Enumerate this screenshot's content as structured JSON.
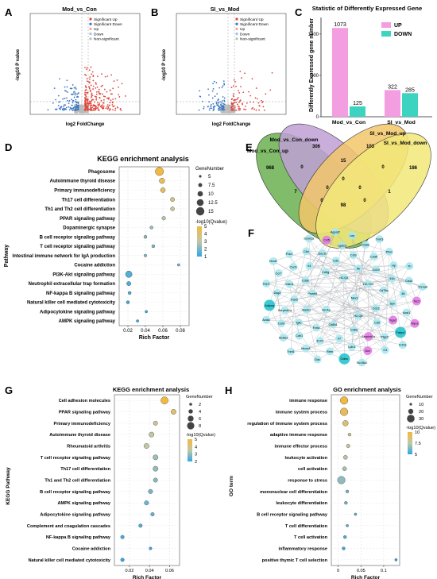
{
  "panels": {
    "A": {
      "letter": "A",
      "title": "Mod_vs_Con",
      "xlabel": "log2 FoldChange",
      "ylabel": "-log10 P value",
      "legend": [
        "Significant Up",
        "Significant Down",
        "Up",
        "Down",
        "Non-significant"
      ]
    },
    "B": {
      "letter": "B",
      "title": "SI_vs_Mod",
      "xlabel": "log2 FoldChange",
      "ylabel": "-log10 P value",
      "legend": [
        "Significant Up",
        "Significant Down",
        "Up",
        "Down",
        "Non-significant"
      ]
    },
    "C": {
      "letter": "C",
      "title": "Statistic of Differently Expressed Gene",
      "ylabel": "Differently Expressed gene number",
      "legend": [
        "UP",
        "DOWN"
      ]
    },
    "D": {
      "letter": "D",
      "title": "KEGG enrichment analysis",
      "xlabel": "Rich Factor",
      "ylabel": "Pathway",
      "size_title": "GeneNumber",
      "color_title": "-log10(Qvalue)"
    },
    "E": {
      "letter": "E",
      "sets": [
        "Mod_vs_Con_down",
        "Mod_vs_Con_up",
        "SI_vs_Mod_up",
        "SI_vs_Mod_down"
      ],
      "counts": [
        "968",
        "306",
        "103",
        "186",
        "0",
        "15",
        "0",
        "0",
        "7",
        "0",
        "0",
        "1",
        "98",
        "0",
        "0"
      ]
    },
    "F": {
      "letter": "F"
    },
    "G": {
      "letter": "G",
      "title": "KEGG enrichment analysis",
      "xlabel": "Rich Factor",
      "ylabel": "KEGG Pathway",
      "size_title": "GeneNumber",
      "color_title": "-log10(Qvalue)"
    },
    "H": {
      "letter": "H",
      "title": "GO enrichment analysis",
      "xlabel": "Rich Factor",
      "ylabel": "GO term",
      "size_title": "GeneNumber",
      "color_title": "-log10(Qvalue)"
    }
  },
  "chart_data": [
    {
      "id": "C",
      "type": "bar",
      "title": "Statistic of Differently Expressed Gene",
      "categories": [
        "Mod_vs_Con",
        "SI_vs_Mod"
      ],
      "series": [
        {
          "name": "UP",
          "values": [
            1073,
            322
          ],
          "color": "#f29ee0"
        },
        {
          "name": "DOWN",
          "values": [
            125,
            285
          ],
          "color": "#3cd3c0"
        }
      ],
      "ylabel": "Differently Expressed gene number",
      "ylim": [
        0,
        1200
      ],
      "yticks": [
        0,
        500,
        1000
      ],
      "legend_position": "top-right"
    },
    {
      "id": "D",
      "type": "scatter",
      "title": "KEGG enrichment analysis",
      "xlabel": "Rich Factor",
      "ylabel": "Pathway",
      "xlim": [
        0.01,
        0.09
      ],
      "xticks": [
        0.02,
        0.04,
        0.06,
        0.08
      ],
      "size_legend": [
        5,
        7.5,
        10,
        12.5,
        15
      ],
      "color_legend": [
        1,
        2,
        3,
        4,
        5
      ],
      "points": [
        {
          "label": "Phagosome",
          "x": 0.056,
          "size": 15,
          "q": 5
        },
        {
          "label": "Autoimmune thyroid disease",
          "x": 0.059,
          "size": 10,
          "q": 4.5
        },
        {
          "label": "Primary immunodeficiency",
          "x": 0.06,
          "size": 9,
          "q": 4.3
        },
        {
          "label": "Th17 cell differentiation",
          "x": 0.071,
          "size": 8,
          "q": 3.6
        },
        {
          "label": "Th1 and Th2 cell differentiation",
          "x": 0.071,
          "size": 7.5,
          "q": 3.4
        },
        {
          "label": "PPAR signaling pathway",
          "x": 0.061,
          "size": 7,
          "q": 2.9
        },
        {
          "label": "Dopaminergic synapse",
          "x": 0.047,
          "size": 6,
          "q": 2.4
        },
        {
          "label": "B cell receptor signaling pathway",
          "x": 0.04,
          "size": 6,
          "q": 2.2
        },
        {
          "label": "T cell receptor signaling pathway",
          "x": 0.049,
          "size": 6,
          "q": 2.1
        },
        {
          "label": "Intestinal immune network for IgA production",
          "x": 0.04,
          "size": 5.5,
          "q": 2
        },
        {
          "label": "Cocaine addiction",
          "x": 0.078,
          "size": 5,
          "q": 1.9
        },
        {
          "label": "PI3K-Akt signaling pathway",
          "x": 0.021,
          "size": 12,
          "q": 1.5
        },
        {
          "label": "Neutrophil extracellular trap formation",
          "x": 0.021,
          "size": 8,
          "q": 1.4
        },
        {
          "label": "NF-kappa B signaling pathway",
          "x": 0.022,
          "size": 6,
          "q": 1.3
        },
        {
          "label": "Natural killer cell mediated cytotoxicity",
          "x": 0.02,
          "size": 6,
          "q": 1.2
        },
        {
          "label": "Adipocytokine signaling pathway",
          "x": 0.041,
          "size": 5,
          "q": 1.1
        },
        {
          "label": "AMPK signaling pathway",
          "x": 0.031,
          "size": 5,
          "q": 1
        }
      ]
    },
    {
      "id": "G",
      "type": "scatter",
      "title": "KEGG enrichment analysis",
      "xlabel": "Rich Factor",
      "ylabel": "KEGG Pathway",
      "xlim": [
        0.005,
        0.07
      ],
      "xticks": [
        0.02,
        0.04,
        0.06
      ],
      "size_legend": [
        2,
        4,
        6,
        8
      ],
      "color_legend": [
        2,
        3,
        4,
        5
      ],
      "points": [
        {
          "label": "Cell adhesion molecules",
          "x": 0.055,
          "size": 8,
          "q": 5.2
        },
        {
          "label": "PPAR signaling pathway",
          "x": 0.064,
          "size": 5,
          "q": 4.4
        },
        {
          "label": "Primary immunodeficiency",
          "x": 0.046,
          "size": 4,
          "q": 3.8
        },
        {
          "label": "Autoimmune thyroid disease",
          "x": 0.042,
          "size": 5,
          "q": 3.6
        },
        {
          "label": "Rheumatoid arthritis",
          "x": 0.037,
          "size": 5,
          "q": 3.5
        },
        {
          "label": "T cell receptor signaling pathway",
          "x": 0.046,
          "size": 5,
          "q": 3.1
        },
        {
          "label": "Th17 cell differentiation",
          "x": 0.046,
          "size": 5,
          "q": 3
        },
        {
          "label": "Th1 and Th2 cell differentiation",
          "x": 0.046,
          "size": 4,
          "q": 2.9
        },
        {
          "label": "B cell receptor signaling pathway",
          "x": 0.041,
          "size": 4,
          "q": 2.7
        },
        {
          "label": "AMPK signaling pathway",
          "x": 0.037,
          "size": 4,
          "q": 2.6
        },
        {
          "label": "Adipocytokine signaling pathway",
          "x": 0.043,
          "size": 3,
          "q": 2.5
        },
        {
          "label": "Complement and coagulation cascades",
          "x": 0.031,
          "size": 3,
          "q": 2.3
        },
        {
          "label": "NF-kappa B signaling pathway",
          "x": 0.013,
          "size": 3,
          "q": 2.2
        },
        {
          "label": "Cocaine addiction",
          "x": 0.041,
          "size": 2,
          "q": 2.1
        },
        {
          "label": "Natural killer cell mediated cytotoxicity",
          "x": 0.013,
          "size": 3,
          "q": 2
        }
      ]
    },
    {
      "id": "H",
      "type": "scatter",
      "title": "GO enrichment analysis",
      "xlabel": "Rich Factor",
      "ylabel": "GO term",
      "xlim": [
        -0.015,
        0.135
      ],
      "xticks": [
        0,
        0.05,
        0.1
      ],
      "size_legend": [
        10,
        20,
        30
      ],
      "color_legend": [
        5,
        7.5,
        10
      ],
      "points": [
        {
          "label": "immune response",
          "x": 0.013,
          "size": 30,
          "q": 10
        },
        {
          "label": "immune system process",
          "x": 0.013,
          "size": 32,
          "q": 9.5
        },
        {
          "label": "regulation of immune system process",
          "x": 0.016,
          "size": 22,
          "q": 8.8
        },
        {
          "label": "adaptive immune response",
          "x": 0.025,
          "size": 12,
          "q": 8.2
        },
        {
          "label": "immune effector process",
          "x": 0.022,
          "size": 14,
          "q": 7.8
        },
        {
          "label": "leukocyte activation",
          "x": 0.016,
          "size": 16,
          "q": 7.3
        },
        {
          "label": "cell activation",
          "x": 0.014,
          "size": 16,
          "q": 7
        },
        {
          "label": "response to stress",
          "x": 0.007,
          "size": 30,
          "q": 6.6
        },
        {
          "label": "mononuclear cell differentiation",
          "x": 0.02,
          "size": 12,
          "q": 6.3
        },
        {
          "label": "leukocyte differentiation",
          "x": 0.017,
          "size": 12,
          "q": 6
        },
        {
          "label": "B cell receptor signaling pathway",
          "x": 0.038,
          "size": 6,
          "q": 5.8
        },
        {
          "label": "T cell differentiation",
          "x": 0.02,
          "size": 10,
          "q": 5.6
        },
        {
          "label": "T cell activation",
          "x": 0.015,
          "size": 12,
          "q": 5.4
        },
        {
          "label": "inflammatory response",
          "x": 0.012,
          "size": 12,
          "q": 5.2
        },
        {
          "label": "positive thymic T cell selection",
          "x": 0.127,
          "size": 4,
          "q": 5
        }
      ]
    }
  ],
  "network": {
    "nodes": [
      {
        "id": "Nkx3",
        "c": "cyan"
      },
      {
        "id": "H2-Aa",
        "c": "cyan"
      },
      {
        "id": "H2-Q4",
        "c": "cyan"
      },
      {
        "id": "H2-Q6",
        "c": "cyan"
      },
      {
        "id": "Psmb9",
        "c": "cyan"
      },
      {
        "id": "H2-T23",
        "c": "cyan"
      },
      {
        "id": "Cd8b1",
        "c": "cyan"
      },
      {
        "id": "Cd3g",
        "c": "cyan"
      },
      {
        "id": "Cd22",
        "c": "cyan"
      },
      {
        "id": "Bank1",
        "c": "cyan"
      },
      {
        "id": "Itk",
        "c": "cyan"
      },
      {
        "id": "Cd8a",
        "c": "cyan"
      },
      {
        "id": "Cd3e",
        "c": "cyan"
      },
      {
        "id": "Cd79a",
        "c": "cyan"
      },
      {
        "id": "Fcrla",
        "c": "cyan"
      },
      {
        "id": "Cd2",
        "c": "cyan"
      },
      {
        "id": "Cd5",
        "c": "cyan"
      },
      {
        "id": "Pax5",
        "c": "cyan"
      },
      {
        "id": "Cd19",
        "c": "cyan"
      },
      {
        "id": "Il7",
        "c": "cyan"
      },
      {
        "id": "Il4",
        "c": "cyan"
      },
      {
        "id": "Spn",
        "c": "cyan"
      },
      {
        "id": "Igkc",
        "c": "cyan"
      },
      {
        "id": "Ccl9",
        "c": "cyan"
      },
      {
        "id": "Serpinb3a",
        "c": "pink"
      },
      {
        "id": "Vstm1",
        "c": "cyan"
      },
      {
        "id": "Il1b",
        "c": "cyan"
      },
      {
        "id": "Il17b",
        "c": "cyan"
      },
      {
        "id": "Clec1b",
        "c": "cyan"
      },
      {
        "id": "Itga2",
        "c": "pink"
      },
      {
        "id": "Serpinb1a",
        "c": "cyan"
      },
      {
        "id": "Cd36",
        "c": "cyan"
      },
      {
        "id": "Lpin1",
        "c": "cyan"
      },
      {
        "id": "Cxcl1",
        "c": "cyan"
      },
      {
        "id": "Il6",
        "c": "cyan"
      },
      {
        "id": "Cdh1",
        "c": "cyan"
      },
      {
        "id": "Lgals3",
        "c": "cyan"
      },
      {
        "id": "Ptgs2",
        "c": "cyan"
      },
      {
        "id": "Dsg2",
        "c": "cyan"
      },
      {
        "id": "Hp",
        "c": "cyan"
      },
      {
        "id": "Retn",
        "c": "cyan"
      },
      {
        "id": "Ctsl",
        "c": "cyan"
      },
      {
        "id": "Acsl1",
        "c": "cyan"
      },
      {
        "id": "Car3",
        "c": "cyan"
      },
      {
        "id": "Cd38",
        "c": "cyan"
      },
      {
        "id": "Ace",
        "c": "pink"
      },
      {
        "id": "Ccr7",
        "c": "cyan"
      },
      {
        "id": "Cd44",
        "c": "cyan"
      },
      {
        "id": "Hmox1",
        "c": "cyan"
      },
      {
        "id": "Ccl5",
        "c": "pink"
      },
      {
        "id": "Fabp4",
        "c": "teal"
      },
      {
        "id": "Adipoq",
        "c": "teal"
      },
      {
        "id": "Plin1",
        "c": "cyan"
      },
      {
        "id": "Cidec",
        "c": "teal"
      },
      {
        "id": "Pck1",
        "c": "cyan"
      },
      {
        "id": "Tac2",
        "c": "pink"
      },
      {
        "id": "Slc6a3",
        "c": "cyan"
      },
      {
        "id": "Lep",
        "c": "cyan"
      },
      {
        "id": "C3",
        "c": "cyan"
      },
      {
        "id": "Ucp1",
        "c": "cyan"
      },
      {
        "id": "Th",
        "c": "cyan"
      },
      {
        "id": "Ddc",
        "c": "cyan"
      },
      {
        "id": "Scnn1a",
        "c": "cyan"
      },
      {
        "id": "Myo2",
        "c": "pink"
      },
      {
        "id": "Acta1",
        "c": "cyan"
      },
      {
        "id": "Tnnt3",
        "c": "cyan"
      },
      {
        "id": "Slc18a2",
        "c": "cyan"
      },
      {
        "id": "Nxnl1",
        "c": "cyan"
      },
      {
        "id": "Chrna6",
        "c": "cyan"
      },
      {
        "id": "Tnnt1",
        "c": "cyan"
      },
      {
        "id": "Agpat2",
        "c": "cyan"
      },
      {
        "id": "Crim1",
        "c": "cyan"
      }
    ]
  }
}
